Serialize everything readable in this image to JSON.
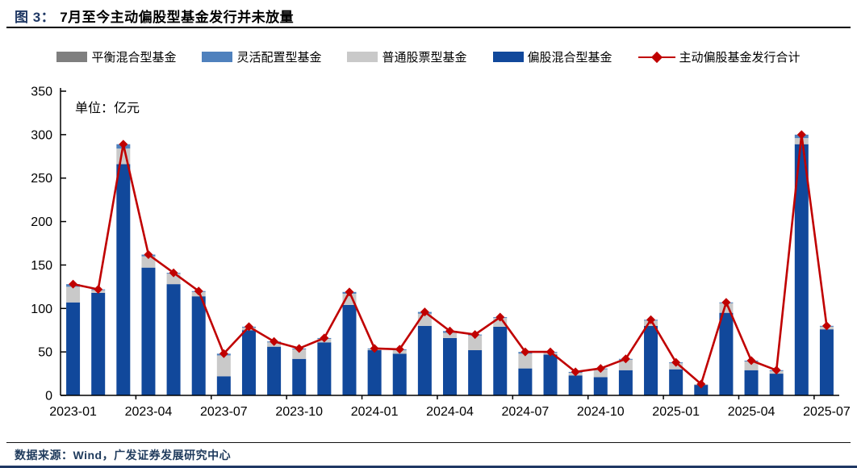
{
  "figure": {
    "title_prefix": "图 3：",
    "title": "7月至今主动偏股型基金发行并未放量",
    "unit_label": "单位：亿元",
    "source": "数据来源：Wind，广发证券发展研究中心"
  },
  "colors": {
    "title_prefix": "#1F3864",
    "axis": "#000000",
    "balanced_hybrid": "#7F7F7F",
    "flexible_allocation": "#4F81BD",
    "common_stock": "#C9C9C9",
    "equity_hybrid": "#11489B",
    "total_line": "#C00000",
    "bottom_bar": "#1F3864"
  },
  "chart_data": {
    "type": "bar",
    "subtype": "stacked-bars-with-line",
    "title": "7月至今主动偏股型基金发行并未放量",
    "unit": "亿元",
    "xlabel": "",
    "ylabel": "",
    "ylim": [
      0,
      350
    ],
    "ytick_step": 50,
    "grid": false,
    "legend_position": "top",
    "x_label_every": 3,
    "categories": [
      "2023-01",
      "2023-02",
      "2023-03",
      "2023-04",
      "2023-05",
      "2023-06",
      "2023-07",
      "2023-08",
      "2023-09",
      "2023-10",
      "2023-11",
      "2023-12",
      "2024-01",
      "2024-02",
      "2024-03",
      "2024-04",
      "2024-05",
      "2024-06",
      "2024-07",
      "2024-08",
      "2024-09",
      "2024-10",
      "2024-11",
      "2024-12",
      "2025-01",
      "2025-02",
      "2025-03",
      "2025-04",
      "2025-05",
      "2025-06",
      "2025-07"
    ],
    "x_tick_labels": [
      "2023-01",
      "2023-04",
      "2023-07",
      "2023-10",
      "2024-01",
      "2024-04",
      "2024-07",
      "2024-10",
      "2025-01",
      "2025-04",
      "2025-07"
    ],
    "series": [
      {
        "name": "平衡混合型基金",
        "type": "bar",
        "stack": 3,
        "color": "#7F7F7F",
        "values": [
          0,
          0,
          0,
          0,
          0,
          0,
          0,
          0,
          0,
          0,
          0,
          0,
          0,
          0,
          0,
          0,
          0,
          0,
          0,
          0,
          0,
          0,
          0,
          0,
          0,
          0,
          0,
          0,
          0,
          0,
          0
        ]
      },
      {
        "name": "灵活配置型基金",
        "type": "bar",
        "stack": 2,
        "color": "#4F81BD",
        "values": [
          3,
          1,
          5,
          2,
          1,
          1,
          2,
          1,
          1,
          1,
          1,
          2,
          1,
          1,
          2,
          2,
          1,
          1,
          2,
          1,
          1,
          1,
          1,
          1,
          1,
          0,
          1,
          1,
          1,
          4,
          1
        ]
      },
      {
        "name": "普通股票型基金",
        "type": "bar",
        "stack": 1,
        "color": "#C9C9C9",
        "values": [
          18,
          3,
          18,
          13,
          12,
          5,
          24,
          3,
          5,
          11,
          4,
          13,
          1,
          4,
          14,
          6,
          17,
          10,
          17,
          2,
          3,
          9,
          12,
          6,
          7,
          1,
          11,
          10,
          3,
          7,
          3
        ]
      },
      {
        "name": "偏股混合型基金",
        "type": "bar",
        "stack": 0,
        "color": "#11489B",
        "values": [
          107,
          118,
          266,
          147,
          128,
          114,
          22,
          75,
          56,
          42,
          61,
          104,
          52,
          48,
          80,
          66,
          52,
          79,
          31,
          47,
          23,
          21,
          29,
          80,
          30,
          12,
          95,
          29,
          25,
          289,
          76
        ]
      },
      {
        "name": "主动偏股基金发行合计",
        "type": "line",
        "color": "#C00000",
        "values": [
          128,
          122,
          289,
          162,
          141,
          120,
          48,
          79,
          62,
          54,
          66,
          119,
          54,
          53,
          96,
          74,
          70,
          90,
          50,
          50,
          27,
          31,
          42,
          87,
          38,
          13,
          107,
          40,
          29,
          300,
          80
        ]
      }
    ]
  }
}
